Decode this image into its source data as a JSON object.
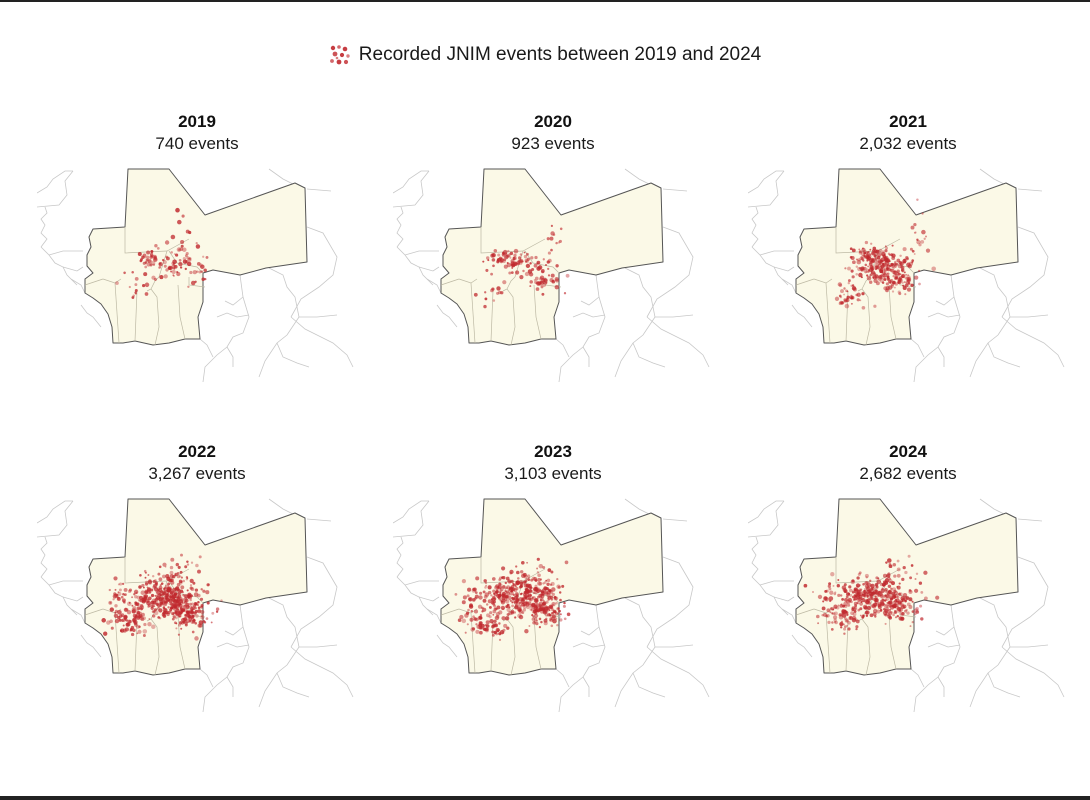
{
  "legend": {
    "label": "Recorded JNIM events between 2019 and 2024",
    "icon": "scatter-dots-icon",
    "dot_color": "#c0282d"
  },
  "colors": {
    "sahel_fill": "#fbf9e7",
    "sahel_border": "#555555",
    "internal_border": "#bdb9a4",
    "other_borders": "#c8c8c8",
    "event_dot": "#c0282d"
  },
  "panels": [
    {
      "year": "2019",
      "count_label": "740 events",
      "events": 740
    },
    {
      "year": "2020",
      "count_label": "923 events",
      "events": 923
    },
    {
      "year": "2021",
      "count_label": "2,032 events",
      "events": 2032
    },
    {
      "year": "2022",
      "count_label": "3,267 events",
      "events": 3267
    },
    {
      "year": "2023",
      "count_label": "3,103 events",
      "events": 3103
    },
    {
      "year": "2024",
      "count_label": "2,682 events",
      "events": 2682
    }
  ]
}
